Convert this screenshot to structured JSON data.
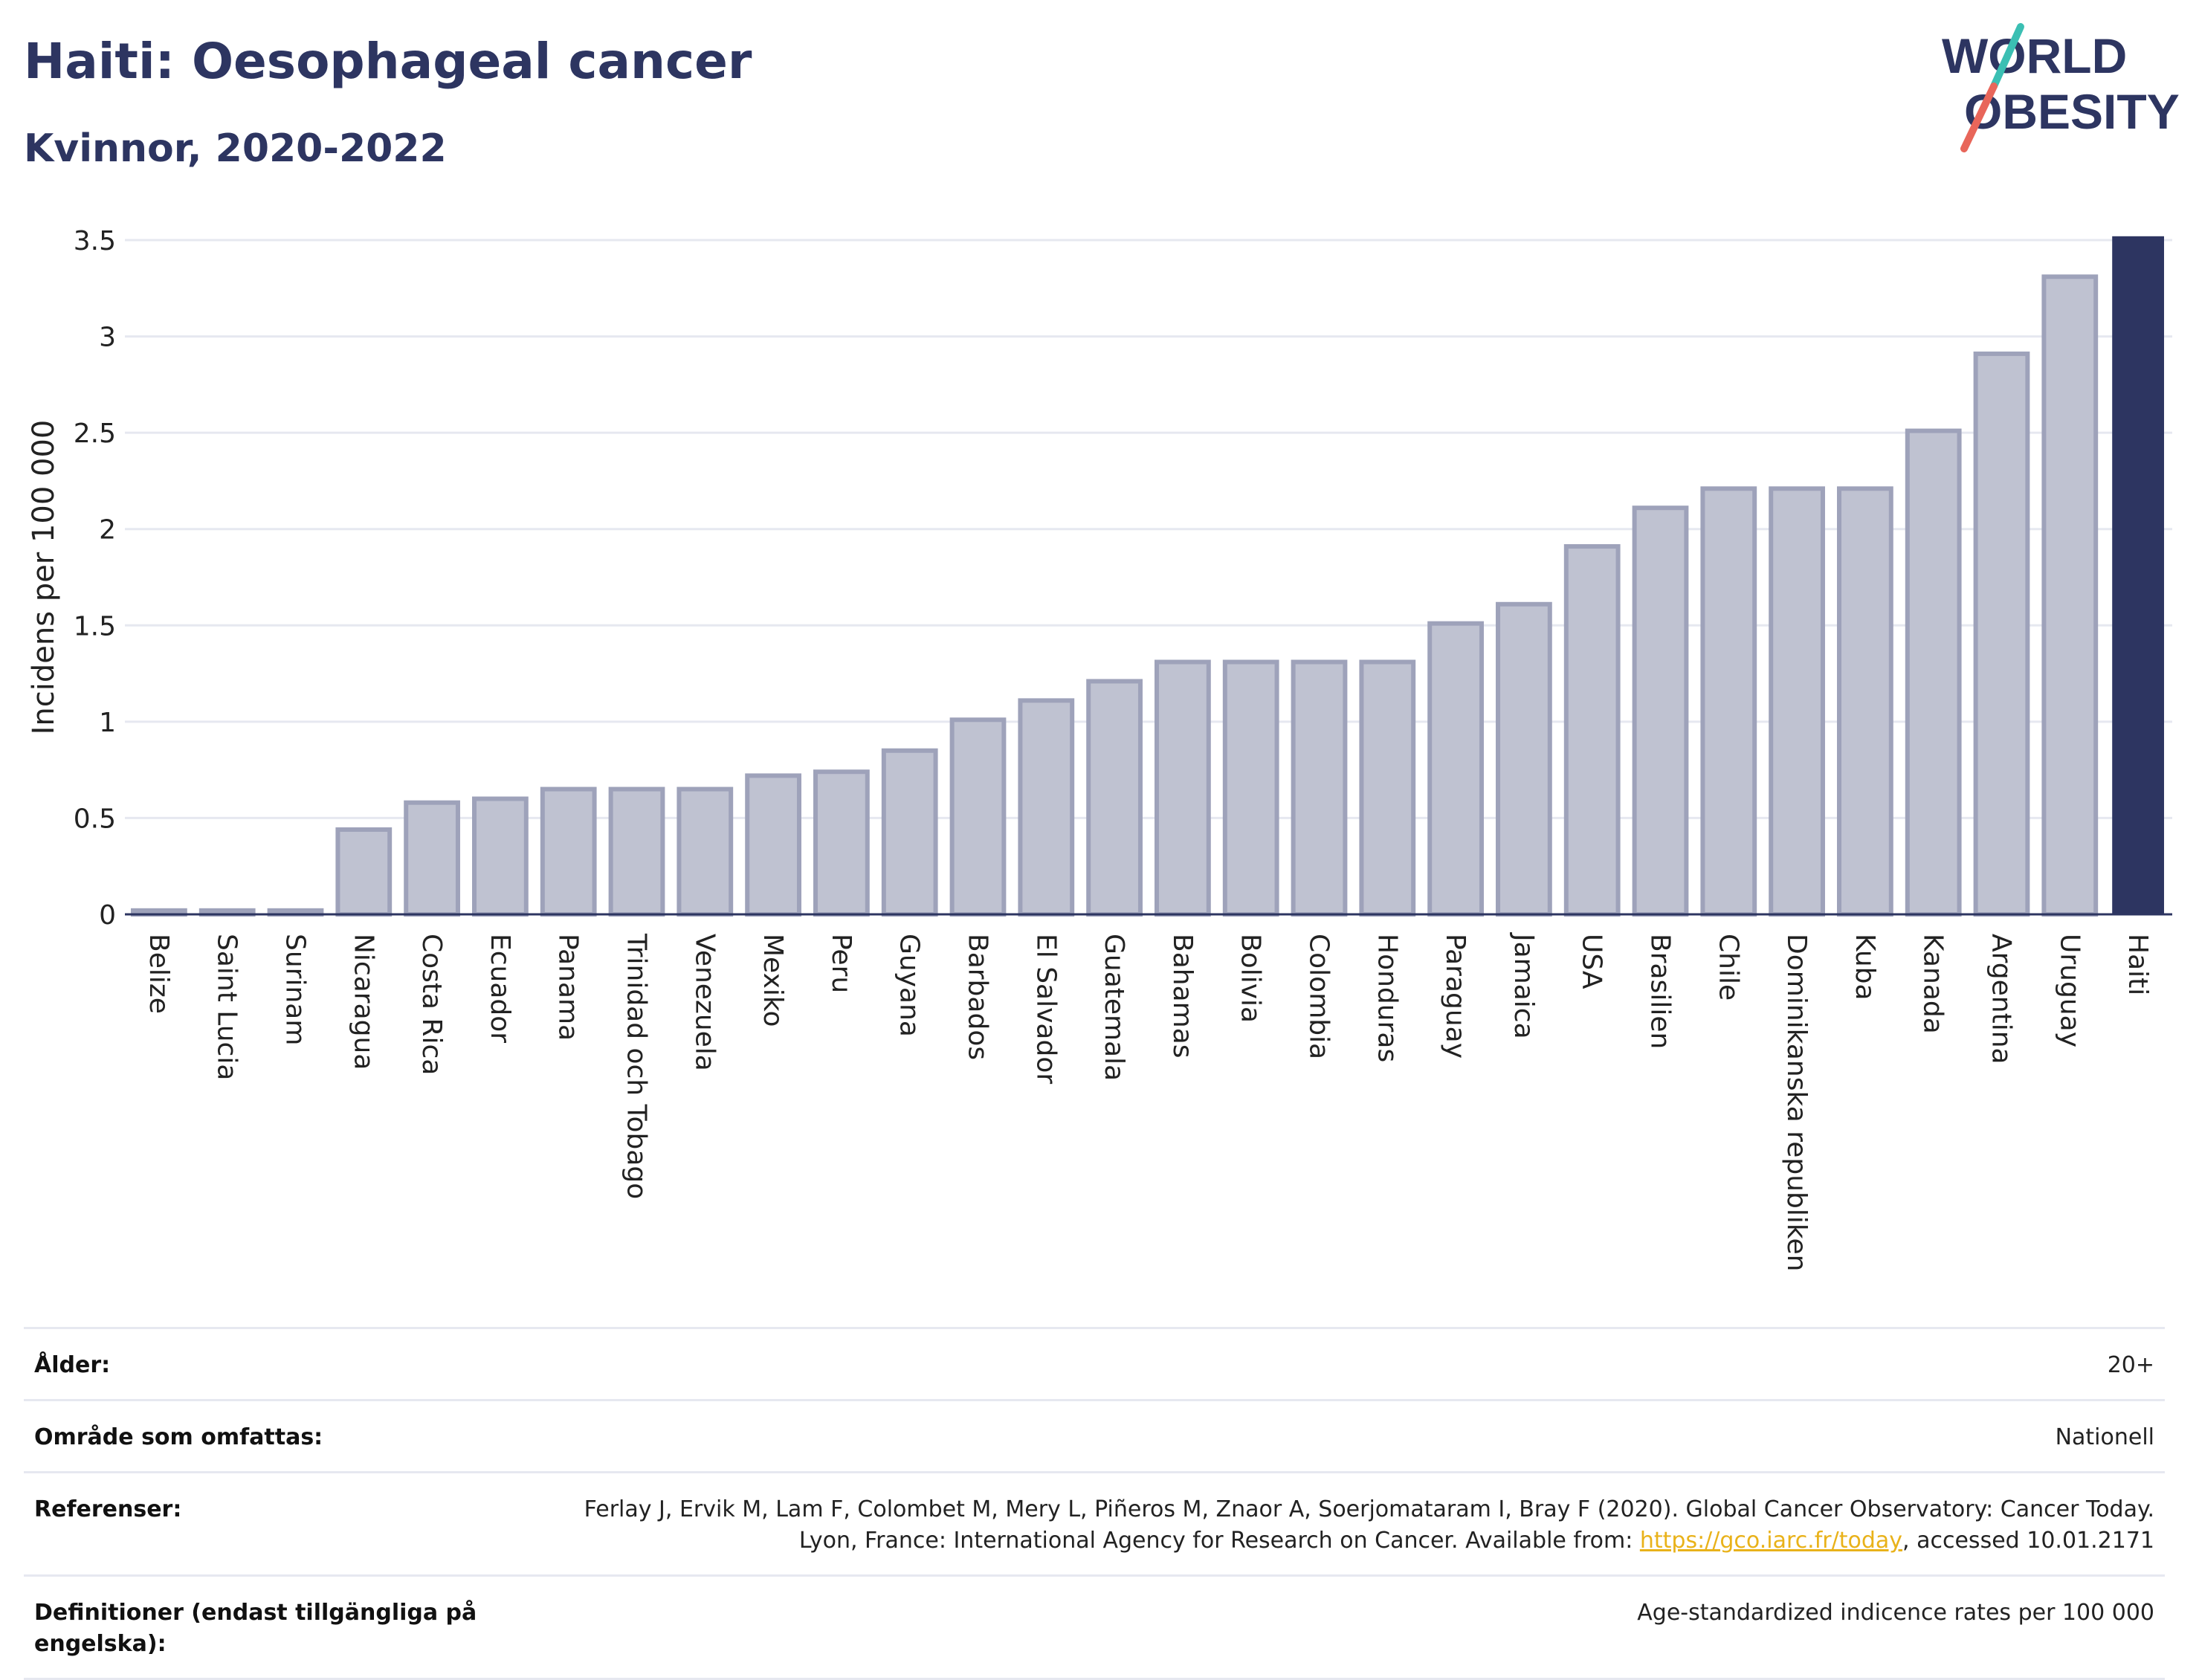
{
  "header": {
    "title": "Haiti: Oesophageal cancer",
    "subtitle": "Kvinnor, 2020-2022"
  },
  "logo": {
    "line1": "WORLD",
    "line2": "OBESITY",
    "text_color": "#2d3561",
    "slash_colors": [
      "#3bbfb3",
      "#e8665a"
    ]
  },
  "chart_data": {
    "type": "bar",
    "title": "Haiti: Oesophageal cancer",
    "subtitle": "Kvinnor, 2020-2022",
    "xlabel": "",
    "ylabel": "Incidens per 100 000",
    "ylim": [
      0,
      3.5
    ],
    "yticks": [
      "0",
      "0.5",
      "1",
      "1.5",
      "2",
      "2.5",
      "3",
      "3.5"
    ],
    "grid": true,
    "categories": [
      "Belize",
      "Saint Lucia",
      "Surinam",
      "Nicaragua",
      "Costa Rica",
      "Ecuador",
      "Panama",
      "Trinidad och Tobago",
      "Venezuela",
      "Mexiko",
      "Peru",
      "Guyana",
      "Barbados",
      "El Salvador",
      "Guatemala",
      "Bahamas",
      "Bolivia",
      "Colombia",
      "Honduras",
      "Paraguay",
      "Jamaica",
      "USA",
      "Brasilien",
      "Chile",
      "Dominikanska republiken",
      "Kuba",
      "Kanada",
      "Argentina",
      "Uruguay",
      "Haiti"
    ],
    "values": [
      0.02,
      0.02,
      0.02,
      0.44,
      0.58,
      0.6,
      0.65,
      0.65,
      0.65,
      0.72,
      0.74,
      0.85,
      1.01,
      1.11,
      1.21,
      1.31,
      1.31,
      1.31,
      1.31,
      1.51,
      1.61,
      1.91,
      2.11,
      2.21,
      2.21,
      2.21,
      2.51,
      2.91,
      3.31,
      3.52
    ],
    "highlight": "Haiti",
    "colors": {
      "bar": "#bfc2d1",
      "bar_border": "#9ea2ba",
      "highlight": "#2d3561",
      "grid": "#e6e8f0",
      "axis": "#2d3561"
    }
  },
  "meta": [
    {
      "label": "Ålder:",
      "value": "20+"
    },
    {
      "label": "Område som omfattas:",
      "value": "Nationell"
    },
    {
      "label": "Referenser:",
      "value_pre": "Ferlay J, Ervik M, Lam F, Colombet M, Mery L, Piñeros M, Znaor A, Soerjomataram I, Bray F (2020). Global Cancer Observatory: Cancer Today. Lyon, France: International Agency for Research on Cancer. Available from: ",
      "link": "https://gco.iarc.fr/today",
      "value_post": ", accessed 10.01.2171"
    },
    {
      "label": "Definitioner (endast tillgängliga på engelska):",
      "value": "Age-standardized indicence rates per 100 000"
    }
  ]
}
